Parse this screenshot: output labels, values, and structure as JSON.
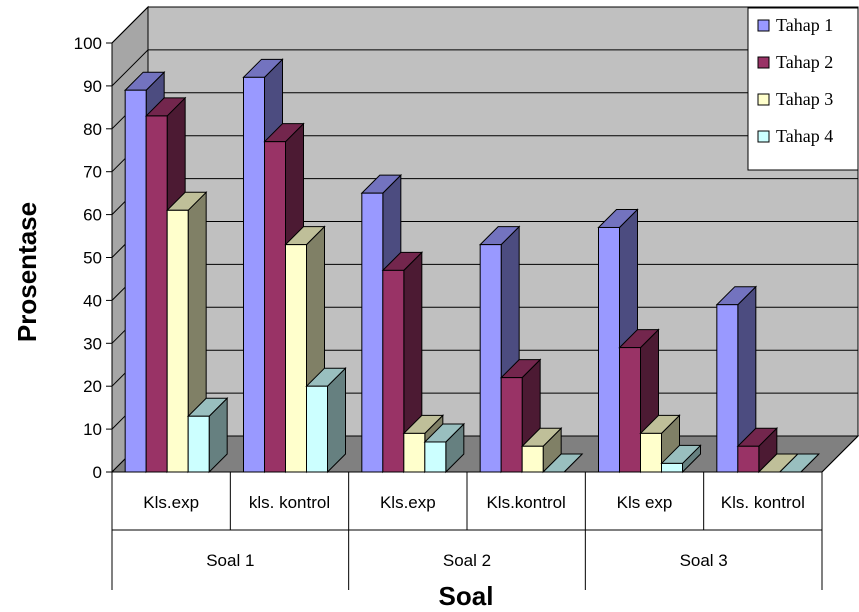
{
  "chart_data": {
    "type": "bar",
    "groups": [
      "Soal 1",
      "Soal 2",
      "Soal 3"
    ],
    "categories": [
      "Kls.exp",
      "kls. kontrol",
      "Kls.exp",
      "Kls.kontrol",
      "Kls exp",
      "Kls. kontrol"
    ],
    "series": [
      {
        "name": "Tahap 1",
        "values": [
          89,
          92,
          65,
          53,
          57,
          39
        ]
      },
      {
        "name": "Tahap 2",
        "values": [
          83,
          77,
          47,
          22,
          29,
          6
        ]
      },
      {
        "name": "Tahap 3",
        "values": [
          61,
          53,
          9,
          6,
          9,
          0
        ]
      },
      {
        "name": "Tahap 4",
        "values": [
          13,
          20,
          7,
          0,
          2,
          0
        ]
      }
    ],
    "ylim": [
      0,
      100
    ],
    "yticks": [
      "0",
      "10",
      "20",
      "30",
      "40",
      "50",
      "60",
      "70",
      "80",
      "90",
      "100"
    ],
    "xlabel": "Soal",
    "ylabel": "Prosentase",
    "grid": true,
    "legend_position": "top-right",
    "style": "3d-clustered-column",
    "colors": {
      "series_front": [
        "#9999ff",
        "#993366",
        "#ffffcc",
        "#ccffff"
      ],
      "series_side": [
        "#4c4c80",
        "#4c1a33",
        "#808066",
        "#668080"
      ],
      "series_top": [
        "#7373bf",
        "#73264d",
        "#bfbf99",
        "#99bfbf"
      ],
      "back_wall": "#c0c0c0",
      "side_wall": "#a6a6a6",
      "floor": "#808080"
    }
  }
}
